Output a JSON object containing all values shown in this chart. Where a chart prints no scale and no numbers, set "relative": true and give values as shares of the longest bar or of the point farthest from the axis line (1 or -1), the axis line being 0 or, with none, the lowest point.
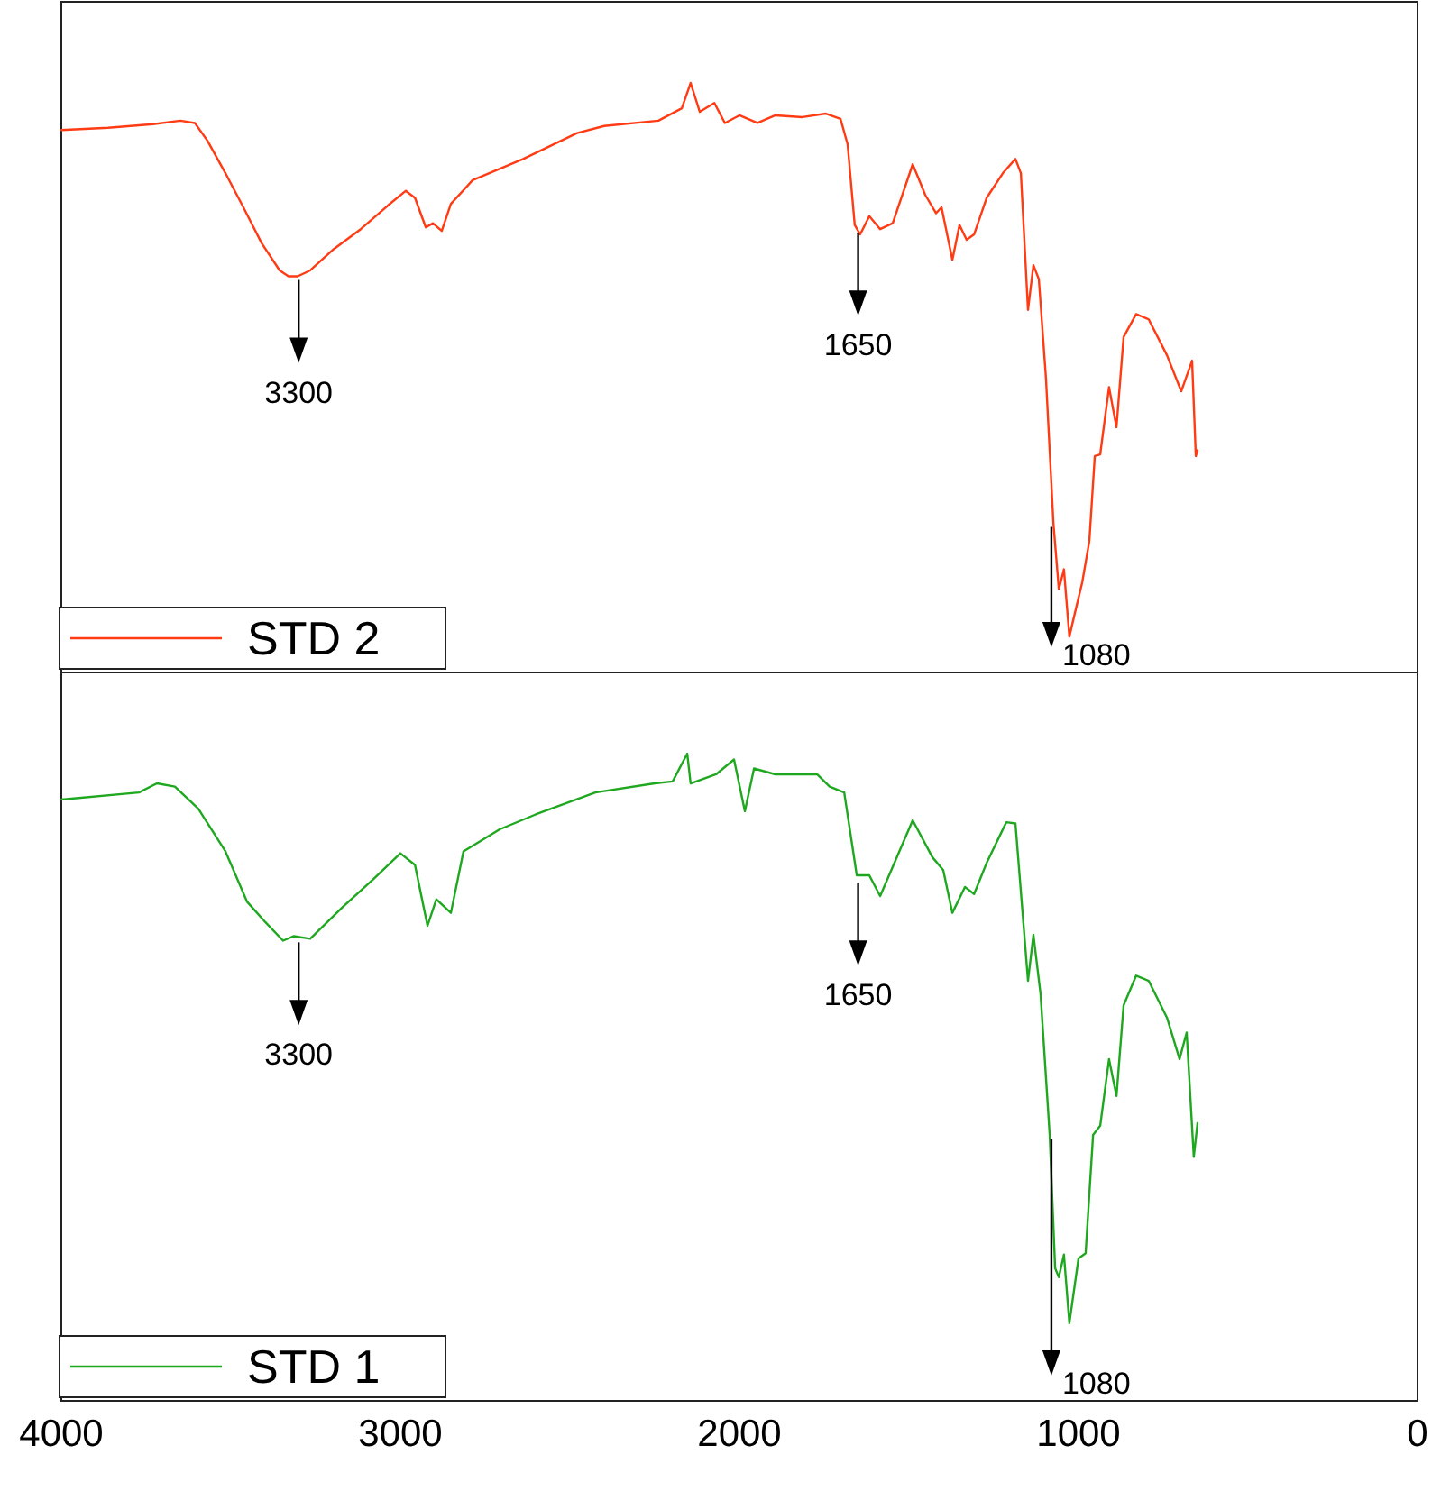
{
  "chart_data": [
    {
      "type": "line",
      "relative": true,
      "xlim": [
        4000,
        0
      ],
      "tick_labels": false,
      "legend": "bottom left",
      "x": [
        4000,
        3862,
        3729,
        3649,
        3606,
        3569,
        3516,
        3463,
        3409,
        3356,
        3330,
        3303,
        3266,
        3197,
        3117,
        3037,
        2984,
        2957,
        2925,
        2904,
        2878,
        2851,
        2787,
        2638,
        2479,
        2399,
        2239,
        2170,
        2144,
        2117,
        2074,
        2043,
        2000,
        1947,
        1894,
        1814,
        1745,
        1702,
        1681,
        1660,
        1644,
        1617,
        1585,
        1548,
        1489,
        1452,
        1420,
        1404,
        1372,
        1351,
        1330,
        1308,
        1271,
        1223,
        1186,
        1170,
        1149,
        1133,
        1117,
        1096,
        1074,
        1058,
        1043,
        1027,
        1011,
        989,
        968,
        952,
        936,
        910,
        888,
        867,
        830,
        793,
        739,
        697,
        665,
        654,
        649
      ],
      "series": [
        {
          "name": "STD 2",
          "color": "#ff3b14",
          "values": [
            0.92,
            0.924,
            0.93,
            0.936,
            0.932,
            0.902,
            0.847,
            0.789,
            0.728,
            0.682,
            0.672,
            0.672,
            0.682,
            0.718,
            0.752,
            0.792,
            0.817,
            0.805,
            0.755,
            0.762,
            0.749,
            0.795,
            0.835,
            0.871,
            0.915,
            0.927,
            0.936,
            0.957,
            1.0,
            0.951,
            0.966,
            0.932,
            0.945,
            0.932,
            0.945,
            0.942,
            0.948,
            0.939,
            0.896,
            0.759,
            0.743,
            0.774,
            0.752,
            0.762,
            0.862,
            0.81,
            0.779,
            0.789,
            0.7,
            0.759,
            0.734,
            0.743,
            0.805,
            0.847,
            0.871,
            0.847,
            0.615,
            0.691,
            0.667,
            0.499,
            0.253,
            0.141,
            0.175,
            0.061,
            0.1,
            0.153,
            0.223,
            0.367,
            0.37,
            0.484,
            0.416,
            0.569,
            0.608,
            0.599,
            0.538,
            0.477,
            0.529,
            0.367,
            0.377
          ]
        }
      ],
      "annotations": [
        {
          "text": "3300",
          "x": 3300,
          "y": 0.672
        },
        {
          "text": "1650",
          "x": 1650,
          "y": 0.752
        },
        {
          "text": "1080",
          "x": 1080,
          "y": 0.253
        }
      ]
    },
    {
      "type": "line",
      "relative": true,
      "xlim": [
        4000,
        0
      ],
      "xticks": [
        4000,
        3000,
        2000,
        1000,
        0
      ],
      "tick_labels": "x",
      "legend": "bottom left",
      "x": [
        4000,
        3771,
        3718,
        3665,
        3596,
        3516,
        3452,
        3399,
        3346,
        3314,
        3266,
        3170,
        3080,
        3000,
        2957,
        2920,
        2894,
        2851,
        2814,
        2707,
        2601,
        2425,
        2250,
        2197,
        2154,
        2144,
        2069,
        2016,
        1984,
        1957,
        1894,
        1771,
        1734,
        1691,
        1654,
        1617,
        1585,
        1489,
        1431,
        1399,
        1372,
        1335,
        1308,
        1271,
        1213,
        1186,
        1149,
        1133,
        1112,
        1085,
        1069,
        1058,
        1043,
        1027,
        1000,
        979,
        957,
        936,
        910,
        888,
        867,
        830,
        793,
        739,
        702,
        681,
        660,
        649
      ],
      "series": [
        {
          "name": "STD 1",
          "color": "#1fa81f",
          "values": [
            0.929,
            0.94,
            0.954,
            0.949,
            0.915,
            0.849,
            0.771,
            0.74,
            0.711,
            0.718,
            0.714,
            0.763,
            0.806,
            0.846,
            0.828,
            0.734,
            0.775,
            0.754,
            0.849,
            0.883,
            0.906,
            0.94,
            0.954,
            0.957,
            1.0,
            0.954,
            0.968,
            0.991,
            0.911,
            0.977,
            0.968,
            0.968,
            0.949,
            0.94,
            0.812,
            0.812,
            0.78,
            0.897,
            0.84,
            0.82,
            0.754,
            0.794,
            0.783,
            0.831,
            0.894,
            0.892,
            0.649,
            0.72,
            0.629,
            0.411,
            0.205,
            0.191,
            0.226,
            0.12,
            0.22,
            0.228,
            0.411,
            0.425,
            0.528,
            0.471,
            0.611,
            0.657,
            0.649,
            0.592,
            0.528,
            0.569,
            0.377,
            0.429
          ]
        }
      ],
      "annotations": [
        {
          "text": "3300",
          "x": 3300,
          "y": 0.714
        },
        {
          "text": "1650",
          "x": 1650,
          "y": 0.806
        },
        {
          "text": "1080",
          "x": 1080,
          "y": 0.41
        }
      ]
    }
  ]
}
